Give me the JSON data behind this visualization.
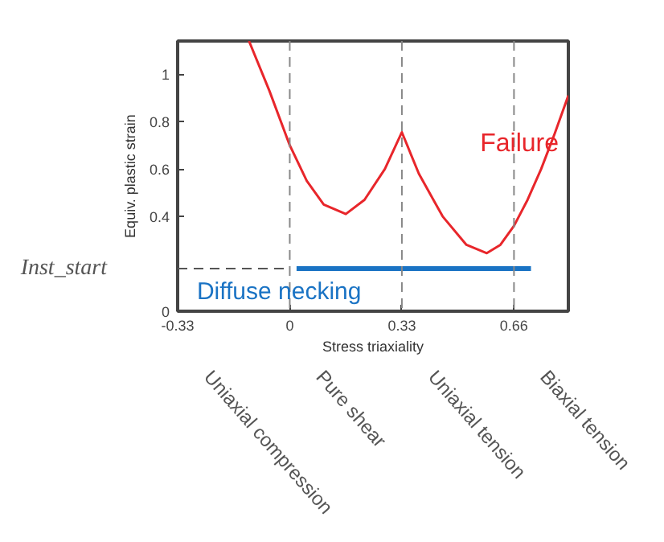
{
  "chart_data": {
    "type": "line",
    "xlabel": "Stress triaxiality",
    "ylabel": "Equiv. plastic strain",
    "xlim": [
      -0.33,
      0.82
    ],
    "ylim": [
      0,
      1.14
    ],
    "xticks": [
      {
        "value": -0.33,
        "label": "-0.33"
      },
      0,
      0.33,
      0.66
    ],
    "yticks": [
      0,
      0.4,
      0.6,
      0.8,
      1
    ],
    "grid": false,
    "legend": false,
    "series": [
      {
        "name": "Failure",
        "color": "#e8262b",
        "line_style": "solid",
        "x": [
          -0.12,
          -0.06,
          0,
          0.05,
          0.1,
          0.165,
          0.22,
          0.28,
          0.33,
          0.38,
          0.45,
          0.52,
          0.58,
          0.62,
          0.66,
          0.7,
          0.74,
          0.78,
          0.82
        ],
        "values": [
          1.14,
          0.93,
          0.7,
          0.55,
          0.45,
          0.41,
          0.47,
          0.6,
          0.755,
          0.58,
          0.4,
          0.28,
          0.245,
          0.28,
          0.36,
          0.47,
          0.6,
          0.75,
          0.91
        ]
      },
      {
        "name": "Diffuse necking",
        "color": "#1a73c4",
        "line_style": "solid",
        "x": [
          0.02,
          0.71
        ],
        "values": [
          0.18,
          0.18
        ]
      },
      {
        "name": "Inst_start",
        "color": "#555555",
        "line_style": "dashed",
        "x": [
          -0.33,
          0
        ],
        "values": [
          0.18,
          0.18
        ]
      }
    ],
    "ref_lines": [
      {
        "axis": "x",
        "value": 0,
        "color": "#888888",
        "line_style": "dashed"
      },
      {
        "axis": "x",
        "value": 0.33,
        "color": "#888888",
        "line_style": "dashed"
      },
      {
        "axis": "x",
        "value": 0.66,
        "color": "#888888",
        "line_style": "dashed"
      }
    ],
    "annotations": [
      "Uniaxial compression",
      "Pure shear",
      "Uniaxial tension",
      "Biaxial tension"
    ]
  }
}
